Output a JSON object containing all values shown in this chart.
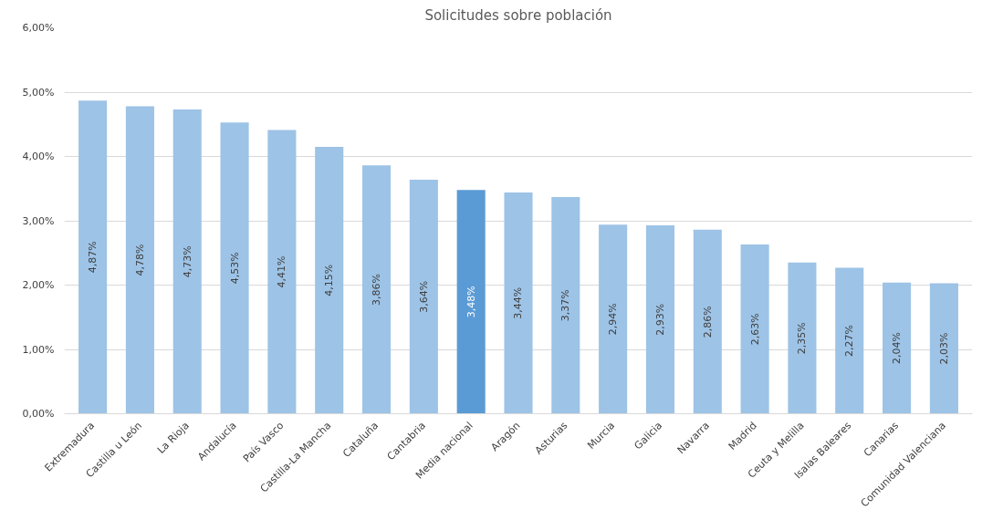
{
  "chart_data": {
    "type": "bar",
    "title": "Solicitudes sobre población",
    "categories": [
      "Extremadura",
      "Castilla u León",
      "La Rioja",
      "Andalucía",
      "País Vasco",
      "Castilla-La Mancha",
      "Cataluña",
      "Cantabria",
      "Media nacional",
      "Aragón",
      "Asturias",
      "Murcia",
      "Galicia",
      "Navarra",
      "Madrid",
      "Ceuta y Melilla",
      "Isalas Baleares",
      "Canarias",
      "Comunidad Valenciana"
    ],
    "values": [
      4.87,
      4.78,
      4.73,
      4.53,
      4.41,
      4.15,
      3.86,
      3.64,
      3.48,
      3.44,
      3.37,
      2.94,
      2.93,
      2.86,
      2.63,
      2.35,
      2.27,
      2.04,
      2.03
    ],
    "colors": [
      "#9dc3e6",
      "#9dc3e6",
      "#9dc3e6",
      "#9dc3e6",
      "#9dc3e6",
      "#9dc3e6",
      "#9dc3e6",
      "#9dc3e6",
      "#5b9bd5",
      "#9dc3e6",
      "#9dc3e6",
      "#9dc3e6",
      "#9dc3e6",
      "#9dc3e6",
      "#9dc3e6",
      "#9dc3e6",
      "#9dc3e6",
      "#9dc3e6",
      "#9dc3e6"
    ],
    "value_labels": [
      "4,87%",
      "4,78%",
      "4,73%",
      "4,53%",
      "4,41%",
      "4,15%",
      "3,86%",
      "3,64%",
      "3,48%",
      "3,44%",
      "3,37%",
      "2,94%",
      "2,93%",
      "2,86%",
      "2,63%",
      "2,35%",
      "2,27%",
      "2,04%",
      "2,03%"
    ],
    "ylim": [
      0,
      6
    ],
    "yticks": [
      {
        "value": 0,
        "label": "0,00%"
      },
      {
        "value": 1,
        "label": "1,00%"
      },
      {
        "value": 2,
        "label": "2,00%"
      },
      {
        "value": 3,
        "label": "3,00%"
      },
      {
        "value": 4,
        "label": "4,00%"
      },
      {
        "value": 5,
        "label": "5,00%"
      },
      {
        "value": 6,
        "label": "6,00%"
      }
    ],
    "grid": "y"
  }
}
